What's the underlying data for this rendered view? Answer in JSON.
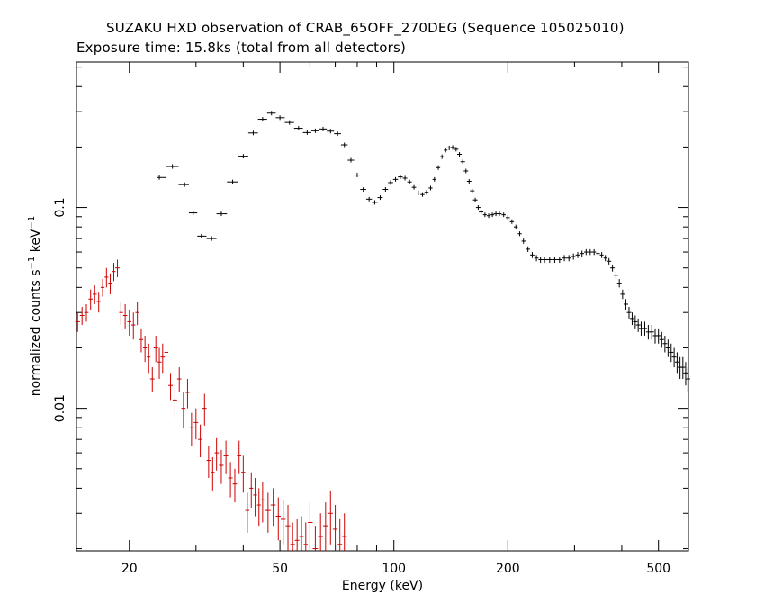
{
  "header": {
    "title": "SUZAKU HXD observation of CRAB_65OFF_270DEG (Sequence 105025010)",
    "subtitle": "Exposure time: 15.8ks (total from all detectors)"
  },
  "chart_data": {
    "type": "scatter",
    "xscale": "log",
    "yscale": "log",
    "xlim": [
      14.5,
      600
    ],
    "ylim": [
      0.00195,
      0.53
    ],
    "xlabel": "Energy (keV)",
    "ylabel": "normalized counts s",
    "ylabel_sup1": "−1",
    "ylabel_mid": " keV",
    "ylabel_sup2": "−1",
    "x_ticks": [
      {
        "v": 20,
        "label": "20"
      },
      {
        "v": 50,
        "label": "50"
      },
      {
        "v": 100,
        "label": "100"
      },
      {
        "v": 200,
        "label": "200"
      },
      {
        "v": 500,
        "label": "500"
      }
    ],
    "y_ticks": [
      {
        "v": 0.01,
        "label": "0.01"
      },
      {
        "v": 0.1,
        "label": "0.1"
      }
    ],
    "colors": {
      "series_pin": "#cc0000",
      "series_gso": "#000000",
      "axes": "#000000"
    },
    "series": [
      {
        "color": "#cc0000",
        "comment": "PIN",
        "points": [
          [
            14.6,
            0.027,
            0.003
          ],
          [
            15.0,
            0.029,
            0.003
          ],
          [
            15.4,
            0.03,
            0.003
          ],
          [
            15.8,
            0.035,
            0.004
          ],
          [
            16.2,
            0.037,
            0.004
          ],
          [
            16.6,
            0.034,
            0.004
          ],
          [
            17.0,
            0.04,
            0.004
          ],
          [
            17.4,
            0.045,
            0.005
          ],
          [
            17.8,
            0.042,
            0.005
          ],
          [
            18.2,
            0.048,
            0.005
          ],
          [
            18.6,
            0.05,
            0.005
          ],
          [
            19.0,
            0.03,
            0.004
          ],
          [
            19.5,
            0.029,
            0.004
          ],
          [
            20.0,
            0.027,
            0.004
          ],
          [
            20.5,
            0.026,
            0.004
          ],
          [
            21.0,
            0.03,
            0.004
          ],
          [
            21.5,
            0.022,
            0.003
          ],
          [
            22.0,
            0.02,
            0.003
          ],
          [
            22.5,
            0.018,
            0.003
          ],
          [
            23.0,
            0.014,
            0.002
          ],
          [
            23.5,
            0.02,
            0.003
          ],
          [
            24.0,
            0.017,
            0.003
          ],
          [
            24.5,
            0.018,
            0.003
          ],
          [
            25.0,
            0.019,
            0.003
          ],
          [
            25.7,
            0.013,
            0.002
          ],
          [
            26.4,
            0.011,
            0.002
          ],
          [
            27.1,
            0.014,
            0.002
          ],
          [
            27.8,
            0.01,
            0.002
          ],
          [
            28.5,
            0.012,
            0.002
          ],
          [
            29.2,
            0.008,
            0.0015
          ],
          [
            30.0,
            0.0085,
            0.0015
          ],
          [
            30.8,
            0.007,
            0.0013
          ],
          [
            31.6,
            0.01,
            0.0018
          ],
          [
            32.4,
            0.0055,
            0.001
          ],
          [
            33.2,
            0.0048,
            0.0009
          ],
          [
            34.0,
            0.006,
            0.0011
          ],
          [
            35.0,
            0.0052,
            0.001
          ],
          [
            36.0,
            0.0058,
            0.0011
          ],
          [
            37.0,
            0.0045,
            0.0009
          ],
          [
            38.0,
            0.0042,
            0.0008
          ],
          [
            39.0,
            0.0058,
            0.0011
          ],
          [
            40.0,
            0.0048,
            0.001
          ],
          [
            41.0,
            0.0031,
            0.0007
          ],
          [
            42.0,
            0.004,
            0.0008
          ],
          [
            43.0,
            0.0037,
            0.0008
          ],
          [
            44.0,
            0.0033,
            0.0007
          ],
          [
            45.0,
            0.0035,
            0.0008
          ],
          [
            46.5,
            0.0031,
            0.0007
          ],
          [
            48.0,
            0.0033,
            0.0007
          ],
          [
            49.5,
            0.0029,
            0.0007
          ],
          [
            51.0,
            0.0028,
            0.0007
          ],
          [
            52.5,
            0.0026,
            0.0007
          ],
          [
            54.0,
            0.0021,
            0.0006
          ],
          [
            55.5,
            0.0022,
            0.0006
          ],
          [
            57.0,
            0.0023,
            0.0006
          ],
          [
            58.5,
            0.0021,
            0.0006
          ],
          [
            60.0,
            0.0027,
            0.0007
          ],
          [
            62.0,
            0.002,
            0.0006
          ],
          [
            64.0,
            0.0023,
            0.0007
          ],
          [
            66.0,
            0.0026,
            0.0008
          ],
          [
            68.0,
            0.003,
            0.0009
          ],
          [
            70.0,
            0.0025,
            0.0008
          ],
          [
            72.0,
            0.0021,
            0.0007
          ],
          [
            74.0,
            0.0023,
            0.0007
          ]
        ]
      },
      {
        "color": "#000000",
        "comment": "GSO",
        "points": [
          [
            24.0,
            0.141,
            0.002
          ],
          [
            26.0,
            0.16,
            0.002
          ],
          [
            28.0,
            0.13,
            0.002
          ],
          [
            29.5,
            0.094,
            0.002
          ],
          [
            31.0,
            0.072,
            0.0015
          ],
          [
            33.0,
            0.07,
            0.0015
          ],
          [
            35.0,
            0.093,
            0.002
          ],
          [
            37.5,
            0.134,
            0.002
          ],
          [
            40.0,
            0.18,
            0.002
          ],
          [
            42.5,
            0.235,
            0.003
          ],
          [
            45.0,
            0.275,
            0.003
          ],
          [
            47.5,
            0.295,
            0.003
          ],
          [
            50.0,
            0.28,
            0.003
          ],
          [
            53.0,
            0.265,
            0.003
          ],
          [
            56.0,
            0.248,
            0.003
          ],
          [
            59.0,
            0.236,
            0.003
          ],
          [
            62.0,
            0.241,
            0.003
          ],
          [
            65.0,
            0.246,
            0.003
          ],
          [
            68.0,
            0.24,
            0.003
          ],
          [
            71.0,
            0.233,
            0.003
          ],
          [
            74.0,
            0.205,
            0.003
          ],
          [
            77.0,
            0.172,
            0.003
          ],
          [
            80.0,
            0.145,
            0.002
          ],
          [
            83.0,
            0.123,
            0.002
          ],
          [
            86.0,
            0.11,
            0.002
          ],
          [
            89.0,
            0.106,
            0.002
          ],
          [
            92.0,
            0.112,
            0.002
          ],
          [
            95.0,
            0.123,
            0.002
          ],
          [
            98.0,
            0.133,
            0.002
          ],
          [
            101.0,
            0.138,
            0.002
          ],
          [
            104.0,
            0.142,
            0.002
          ],
          [
            107.0,
            0.14,
            0.002
          ],
          [
            110.0,
            0.134,
            0.002
          ],
          [
            113.0,
            0.126,
            0.002
          ],
          [
            116.0,
            0.118,
            0.002
          ],
          [
            119.0,
            0.116,
            0.002
          ],
          [
            122.0,
            0.119,
            0.002
          ],
          [
            125.0,
            0.125,
            0.002
          ],
          [
            128.0,
            0.138,
            0.002
          ],
          [
            131.0,
            0.158,
            0.002
          ],
          [
            134.0,
            0.179,
            0.002
          ],
          [
            137.0,
            0.193,
            0.002
          ],
          [
            140.0,
            0.198,
            0.002
          ],
          [
            143.0,
            0.199,
            0.002
          ],
          [
            146.0,
            0.195,
            0.002
          ],
          [
            149.0,
            0.184,
            0.002
          ],
          [
            152.0,
            0.169,
            0.002
          ],
          [
            155.0,
            0.152,
            0.002
          ],
          [
            158.0,
            0.135,
            0.002
          ],
          [
            161.0,
            0.121,
            0.002
          ],
          [
            164.0,
            0.109,
            0.002
          ],
          [
            167.0,
            0.1,
            0.002
          ],
          [
            170.0,
            0.095,
            0.002
          ],
          [
            174.0,
            0.092,
            0.002
          ],
          [
            178.0,
            0.091,
            0.002
          ],
          [
            182.0,
            0.092,
            0.002
          ],
          [
            186.0,
            0.093,
            0.002
          ],
          [
            190.0,
            0.093,
            0.002
          ],
          [
            195.0,
            0.092,
            0.002
          ],
          [
            200.0,
            0.089,
            0.002
          ],
          [
            205.0,
            0.085,
            0.002
          ],
          [
            210.0,
            0.08,
            0.002
          ],
          [
            215.0,
            0.074,
            0.002
          ],
          [
            220.0,
            0.068,
            0.002
          ],
          [
            226.0,
            0.062,
            0.002
          ],
          [
            232.0,
            0.058,
            0.002
          ],
          [
            238.0,
            0.056,
            0.002
          ],
          [
            244.0,
            0.055,
            0.002
          ],
          [
            250.0,
            0.055,
            0.002
          ],
          [
            258.0,
            0.055,
            0.002
          ],
          [
            266.0,
            0.055,
            0.002
          ],
          [
            274.0,
            0.055,
            0.002
          ],
          [
            282.0,
            0.056,
            0.002
          ],
          [
            290.0,
            0.056,
            0.002
          ],
          [
            298.0,
            0.057,
            0.002
          ],
          [
            306.0,
            0.058,
            0.002
          ],
          [
            314.0,
            0.059,
            0.002
          ],
          [
            322.0,
            0.06,
            0.002
          ],
          [
            330.0,
            0.06,
            0.002
          ],
          [
            338.0,
            0.06,
            0.002
          ],
          [
            346.0,
            0.059,
            0.002
          ],
          [
            354.0,
            0.058,
            0.002
          ],
          [
            362.0,
            0.056,
            0.002
          ],
          [
            370.0,
            0.054,
            0.002
          ],
          [
            378.0,
            0.05,
            0.002
          ],
          [
            386.0,
            0.046,
            0.002
          ],
          [
            394.0,
            0.042,
            0.002
          ],
          [
            402.0,
            0.037,
            0.002
          ],
          [
            410.0,
            0.033,
            0.002
          ],
          [
            418.0,
            0.03,
            0.002
          ],
          [
            426.0,
            0.028,
            0.002
          ],
          [
            434.0,
            0.027,
            0.002
          ],
          [
            442.0,
            0.026,
            0.002
          ],
          [
            450.0,
            0.025,
            0.002
          ],
          [
            460.0,
            0.025,
            0.002
          ],
          [
            470.0,
            0.024,
            0.002
          ],
          [
            480.0,
            0.024,
            0.002
          ],
          [
            490.0,
            0.023,
            0.002
          ],
          [
            500.0,
            0.023,
            0.002
          ],
          [
            510.0,
            0.022,
            0.002
          ],
          [
            520.0,
            0.021,
            0.002
          ],
          [
            530.0,
            0.02,
            0.002
          ],
          [
            540.0,
            0.019,
            0.002
          ],
          [
            550.0,
            0.018,
            0.002
          ],
          [
            560.0,
            0.017,
            0.002
          ],
          [
            570.0,
            0.016,
            0.002
          ],
          [
            580.0,
            0.016,
            0.002
          ],
          [
            590.0,
            0.015,
            0.002
          ],
          [
            598.0,
            0.014,
            0.002
          ]
        ]
      }
    ]
  }
}
